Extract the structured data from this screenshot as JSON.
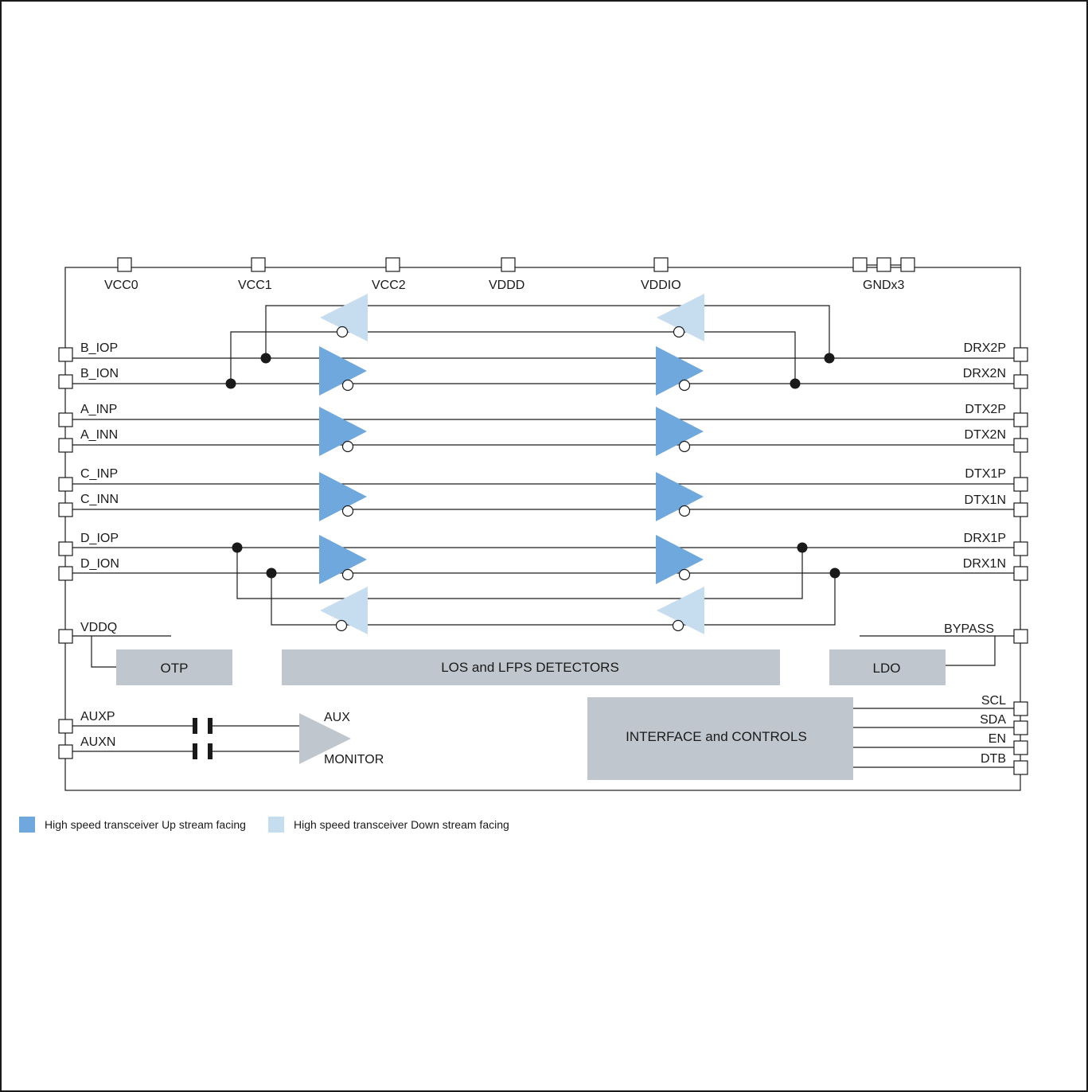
{
  "power_pins": {
    "vcc0": "VCC0",
    "vcc1": "VCC1",
    "vcc2": "VCC2",
    "vddd": "VDDD",
    "vddio": "VDDIO",
    "gnd": "GNDx3"
  },
  "left_pins": {
    "b_iop": "B_IOP",
    "b_ion": "B_ION",
    "a_inp": "A_INP",
    "a_inn": "A_INN",
    "c_inp": "C_INP",
    "c_inn": "C_INN",
    "d_iop": "D_IOP",
    "d_ion": "D_ION",
    "vddq": "VDDQ",
    "auxp": "AUXP",
    "auxn": "AUXN"
  },
  "right_pins": {
    "drx2p": "DRX2P",
    "drx2n": "DRX2N",
    "dtx2p": "DTX2P",
    "dtx2n": "DTX2N",
    "dtx1p": "DTX1P",
    "dtx1n": "DTX1N",
    "drx1p": "DRX1P",
    "drx1n": "DRX1N",
    "bypass": "BYPASS",
    "scl": "SCL",
    "sda": "SDA",
    "en": "EN",
    "dtb": "DTB"
  },
  "blocks": {
    "otp": "OTP",
    "los_lfps": "LOS and LFPS DETECTORS",
    "ldo": "LDO",
    "interface": "INTERFACE and CONTROLS"
  },
  "aux_monitor": {
    "line1": "AUX",
    "line2": "MONITOR"
  },
  "legend": {
    "upstream": "High speed transceiver Up stream facing",
    "downstream": "High speed transceiver Down stream facing"
  },
  "colors": {
    "upstream": "#6fa8dc",
    "downstream": "#c6dcef",
    "block_fill": "#c0c6cd",
    "aux_amp": "#c0c6cd",
    "line": "#1a1a1a"
  }
}
